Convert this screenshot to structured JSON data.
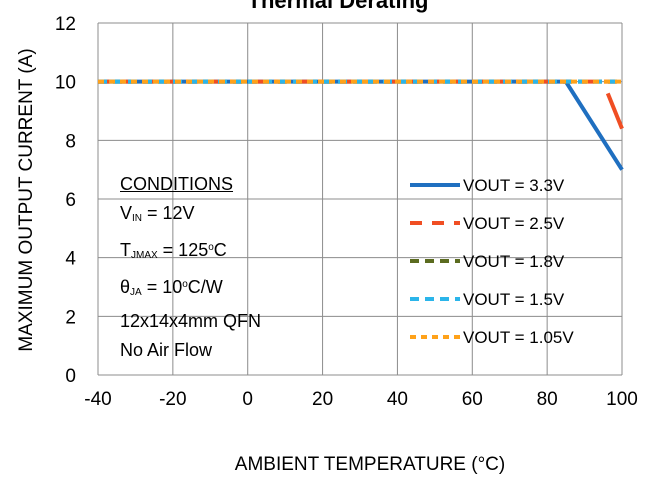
{
  "chart_data": {
    "type": "line",
    "title": "Thermal Derating",
    "xlabel": "AMBIENT TEMPERATURE (°C)",
    "ylabel": "MAXIMUM OUTPUT CURRENT (A)",
    "xlim": [
      -40,
      100
    ],
    "ylim": [
      0,
      12
    ],
    "xticks": [
      -40,
      -20,
      0,
      20,
      40,
      60,
      80,
      100
    ],
    "yticks": [
      0,
      2,
      4,
      6,
      8,
      10,
      12
    ],
    "grid": true,
    "legend_position": "lower-right",
    "series": [
      {
        "name": "VOUT = 3.3V",
        "color": "#1f6fc0",
        "dash": "solid",
        "x": [
          -40,
          85,
          100
        ],
        "y": [
          10,
          10,
          7
        ]
      },
      {
        "name": "VOUT = 2.5V",
        "color": "#f04e23",
        "dash": "long",
        "x": [
          -40,
          96,
          100
        ],
        "y": [
          10,
          9.6,
          8.5
        ]
      },
      {
        "name": "VOUT = 1.8V",
        "color": "#5b6b1f",
        "dash": "dash",
        "x": [
          -40,
          100
        ],
        "y": [
          10,
          10
        ]
      },
      {
        "name": "VOUT = 1.5V",
        "color": "#2bb5ea",
        "dash": "dash",
        "x": [
          -40,
          100
        ],
        "y": [
          10,
          10
        ]
      },
      {
        "name": "VOUT = 1.05V",
        "color": "#ffa21a",
        "dash": "short",
        "x": [
          -40,
          100
        ],
        "y": [
          10,
          10
        ]
      }
    ]
  },
  "conditions": {
    "header": "CONDITIONS",
    "vin": {
      "sym": "V",
      "sub": "IN",
      "rest": " = 12V"
    },
    "tjmax": {
      "sym": "T",
      "sub": "JMAX",
      "val": " = 125",
      "sup": "o",
      "unit": "C"
    },
    "theta": {
      "sym": "θ",
      "sub": "JA",
      "val": " = 10",
      "sup": "o",
      "unit": "C/W"
    },
    "package": "12x14x4mm QFN",
    "airflow": "No Air Flow"
  }
}
